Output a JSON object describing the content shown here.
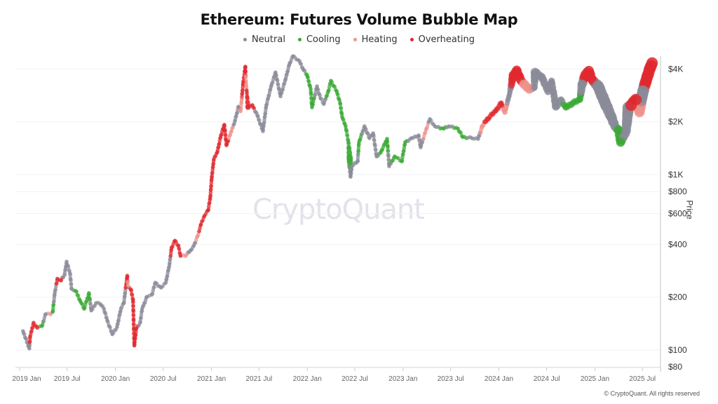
{
  "chart_data": {
    "type": "scatter",
    "title": "Ethereum: Futures Volume Bubble Map",
    "ylabel": "Price",
    "yscale": "log",
    "ylim": [
      80,
      4800
    ],
    "xlim": [
      "2018-12-20",
      "2025-08-25"
    ],
    "grid": "horizontal",
    "legend_position": "top",
    "watermark": "CryptoQuant",
    "copyright": "© CryptoQuant. All rights reserved",
    "y_ticks": [
      {
        "value": 4000,
        "label": "$4K"
      },
      {
        "value": 2000,
        "label": "$2K"
      },
      {
        "value": 1000,
        "label": "$1K"
      },
      {
        "value": 800,
        "label": "$800"
      },
      {
        "value": 600,
        "label": "$600"
      },
      {
        "value": 400,
        "label": "$400"
      },
      {
        "value": 200,
        "label": "$200"
      },
      {
        "value": 100,
        "label": "$100"
      },
      {
        "value": 80,
        "label": "$80"
      }
    ],
    "x_ticks": [
      {
        "value": "2019-01-01",
        "label": "2019 Jan"
      },
      {
        "value": "2019-07-01",
        "label": "2019 Jul"
      },
      {
        "value": "2020-01-01",
        "label": "2020 Jan"
      },
      {
        "value": "2020-07-01",
        "label": "2020 Jul"
      },
      {
        "value": "2021-01-01",
        "label": "2021 Jan"
      },
      {
        "value": "2021-07-01",
        "label": "2021 Jul"
      },
      {
        "value": "2022-01-01",
        "label": "2022 Jan"
      },
      {
        "value": "2022-07-01",
        "label": "2022 Jul"
      },
      {
        "value": "2023-01-01",
        "label": "2023 Jan"
      },
      {
        "value": "2023-07-01",
        "label": "2023 Jul"
      },
      {
        "value": "2024-01-01",
        "label": "2024 Jan"
      },
      {
        "value": "2024-07-01",
        "label": "2024 Jul"
      },
      {
        "value": "2025-01-01",
        "label": "2025 Jan"
      },
      {
        "value": "2025-07-01",
        "label": "2025 Jul"
      }
    ],
    "categories": [
      {
        "key": "n",
        "name": "Neutral",
        "color": "#8a8b99"
      },
      {
        "key": "c",
        "name": "Cooling",
        "color": "#3aa935"
      },
      {
        "key": "h",
        "name": "Heating",
        "color": "#f0928c"
      },
      {
        "key": "o",
        "name": "Overheating",
        "color": "#e0282e"
      }
    ],
    "point_fields": [
      "date",
      "price",
      "state",
      "relative_volume"
    ],
    "points": [
      [
        "2019-01-14",
        128,
        "n",
        1
      ],
      [
        "2019-02-07",
        102,
        "n",
        1
      ],
      [
        "2019-02-10",
        119,
        "o",
        1
      ],
      [
        "2019-02-23",
        143,
        "o",
        1
      ],
      [
        "2019-03-09",
        134,
        "o",
        1
      ],
      [
        "2019-03-27",
        137,
        "c",
        1
      ],
      [
        "2019-04-10",
        160,
        "n",
        1
      ],
      [
        "2019-04-29",
        160,
        "h",
        1
      ],
      [
        "2019-05-07",
        165,
        "c",
        1
      ],
      [
        "2019-05-15",
        212,
        "n",
        1
      ],
      [
        "2019-05-25",
        255,
        "o",
        1
      ],
      [
        "2019-06-08",
        249,
        "o",
        1
      ],
      [
        "2019-06-21",
        268,
        "n",
        1
      ],
      [
        "2019-06-29",
        319,
        "n",
        1
      ],
      [
        "2019-07-12",
        273,
        "n",
        1
      ],
      [
        "2019-07-18",
        223,
        "n",
        1
      ],
      [
        "2019-08-03",
        217,
        "c",
        1
      ],
      [
        "2019-08-21",
        189,
        "c",
        1
      ],
      [
        "2019-09-04",
        172,
        "c",
        1
      ],
      [
        "2019-09-22",
        211,
        "c",
        1
      ],
      [
        "2019-10-01",
        168,
        "n",
        1
      ],
      [
        "2019-10-19",
        185,
        "n",
        1
      ],
      [
        "2019-11-04",
        183,
        "n",
        1
      ],
      [
        "2019-11-18",
        172,
        "n",
        1
      ],
      [
        "2019-12-01",
        147,
        "n",
        1
      ],
      [
        "2019-12-20",
        123,
        "n",
        1
      ],
      [
        "2020-01-07",
        135,
        "n",
        1
      ],
      [
        "2020-01-22",
        172,
        "n",
        1
      ],
      [
        "2020-02-02",
        185,
        "n",
        1
      ],
      [
        "2020-02-15",
        265,
        "o",
        1
      ],
      [
        "2020-02-18",
        233,
        "h",
        1
      ],
      [
        "2020-02-29",
        221,
        "o",
        1
      ],
      [
        "2020-03-08",
        194,
        "o",
        1
      ],
      [
        "2020-03-13",
        106,
        "o",
        1
      ],
      [
        "2020-03-21",
        133,
        "o",
        1
      ],
      [
        "2020-04-04",
        143,
        "n",
        1
      ],
      [
        "2020-04-12",
        172,
        "n",
        1
      ],
      [
        "2020-04-30",
        201,
        "n",
        1
      ],
      [
        "2020-05-19",
        207,
        "n",
        1
      ],
      [
        "2020-06-01",
        242,
        "n",
        1
      ],
      [
        "2020-06-23",
        227,
        "n",
        1
      ],
      [
        "2020-07-11",
        242,
        "n",
        1
      ],
      [
        "2020-07-25",
        308,
        "n",
        1
      ],
      [
        "2020-08-02",
        384,
        "o",
        1
      ],
      [
        "2020-08-15",
        420,
        "o",
        1
      ],
      [
        "2020-08-28",
        394,
        "o",
        1
      ],
      [
        "2020-09-05",
        344,
        "o",
        1
      ],
      [
        "2020-09-24",
        344,
        "h",
        1
      ],
      [
        "2020-10-13",
        370,
        "n",
        1
      ],
      [
        "2020-10-26",
        394,
        "n",
        1
      ],
      [
        "2020-11-09",
        445,
        "h",
        1
      ],
      [
        "2020-11-22",
        520,
        "o",
        1
      ],
      [
        "2020-12-05",
        581,
        "o",
        1
      ],
      [
        "2020-12-19",
        625,
        "o",
        1
      ],
      [
        "2020-12-27",
        731,
        "o",
        1
      ],
      [
        "2021-01-02",
        964,
        "o",
        1
      ],
      [
        "2021-01-10",
        1225,
        "o",
        1
      ],
      [
        "2021-01-23",
        1340,
        "o",
        1
      ],
      [
        "2021-02-06",
        1675,
        "o",
        1
      ],
      [
        "2021-02-19",
        1924,
        "o",
        1
      ],
      [
        "2021-02-27",
        1472,
        "o",
        1
      ],
      [
        "2021-03-18",
        1770,
        "h",
        1
      ],
      [
        "2021-03-31",
        2016,
        "n",
        1
      ],
      [
        "2021-04-14",
        2440,
        "n",
        1
      ],
      [
        "2021-04-22",
        2300,
        "h",
        1
      ],
      [
        "2021-05-02",
        3370,
        "o",
        1
      ],
      [
        "2021-05-10",
        4130,
        "o",
        1
      ],
      [
        "2021-05-13",
        3280,
        "h",
        1
      ],
      [
        "2021-05-16",
        2910,
        "o",
        1
      ],
      [
        "2021-05-20",
        2420,
        "o",
        1.5
      ],
      [
        "2021-06-06",
        2490,
        "o",
        1
      ],
      [
        "2021-06-25",
        2170,
        "n",
        1
      ],
      [
        "2021-07-16",
        1770,
        "n",
        1
      ],
      [
        "2021-07-29",
        2490,
        "n",
        1
      ],
      [
        "2021-08-17",
        3220,
        "n",
        1
      ],
      [
        "2021-09-02",
        3830,
        "n",
        1
      ],
      [
        "2021-09-21",
        2800,
        "n",
        1
      ],
      [
        "2021-10-10",
        3490,
        "n",
        1
      ],
      [
        "2021-10-26",
        4330,
        "n",
        1
      ],
      [
        "2021-11-08",
        4740,
        "n",
        1
      ],
      [
        "2021-12-02",
        4450,
        "n",
        1
      ],
      [
        "2021-12-18",
        3950,
        "n",
        1
      ],
      [
        "2021-12-31",
        3700,
        "c",
        1
      ],
      [
        "2022-01-14",
        3070,
        "c",
        1
      ],
      [
        "2022-01-19",
        2420,
        "c",
        1
      ],
      [
        "2022-02-07",
        3190,
        "n",
        1
      ],
      [
        "2022-02-20",
        2730,
        "n",
        1
      ],
      [
        "2022-03-05",
        2530,
        "n",
        1
      ],
      [
        "2022-03-22",
        2990,
        "c",
        1
      ],
      [
        "2022-04-01",
        3430,
        "c",
        1
      ],
      [
        "2022-04-23",
        2990,
        "c",
        1
      ],
      [
        "2022-05-06",
        2560,
        "c",
        1
      ],
      [
        "2022-05-14",
        2130,
        "c",
        1
      ],
      [
        "2022-05-27",
        1888,
        "c",
        1
      ],
      [
        "2022-06-07",
        1530,
        "c",
        1
      ],
      [
        "2022-06-12",
        1225,
        "c",
        2
      ],
      [
        "2022-06-15",
        973,
        "n",
        1
      ],
      [
        "2022-06-20",
        1117,
        "n",
        1
      ],
      [
        "2022-07-12",
        1190,
        "n",
        1
      ],
      [
        "2022-07-17",
        1530,
        "c",
        1
      ],
      [
        "2022-08-07",
        1888,
        "n",
        1
      ],
      [
        "2022-08-26",
        1615,
        "n",
        1
      ],
      [
        "2022-09-09",
        1722,
        "n",
        1
      ],
      [
        "2022-09-22",
        1270,
        "n",
        1
      ],
      [
        "2022-10-08",
        1340,
        "c",
        1
      ],
      [
        "2022-11-01",
        1600,
        "c",
        1
      ],
      [
        "2022-11-09",
        1117,
        "n",
        1
      ],
      [
        "2022-11-30",
        1270,
        "c",
        1
      ],
      [
        "2022-12-27",
        1190,
        "c",
        1
      ],
      [
        "2023-01-09",
        1530,
        "c",
        1
      ],
      [
        "2023-02-02",
        1615,
        "n",
        1
      ],
      [
        "2023-03-01",
        1675,
        "n",
        1
      ],
      [
        "2023-03-09",
        1432,
        "n",
        1
      ],
      [
        "2023-03-31",
        1830,
        "h",
        1
      ],
      [
        "2023-04-13",
        2075,
        "n",
        1
      ],
      [
        "2023-05-02",
        1888,
        "n",
        1
      ],
      [
        "2023-06-05",
        1830,
        "c",
        1
      ],
      [
        "2023-06-24",
        1888,
        "n",
        1
      ],
      [
        "2023-07-29",
        1830,
        "c",
        1
      ],
      [
        "2023-08-16",
        1640,
        "c",
        1
      ],
      [
        "2023-09-20",
        1615,
        "n",
        1
      ],
      [
        "2023-10-14",
        1600,
        "n",
        1
      ],
      [
        "2023-10-30",
        1888,
        "h",
        1.3
      ],
      [
        "2023-11-18",
        2075,
        "o",
        1.5
      ],
      [
        "2023-12-20",
        2310,
        "o",
        1.5
      ],
      [
        "2024-01-10",
        2560,
        "o",
        1.5
      ],
      [
        "2024-01-24",
        2270,
        "h",
        1.5
      ],
      [
        "2024-02-11",
        2910,
        "n",
        1.5
      ],
      [
        "2024-02-25",
        3700,
        "o",
        3
      ],
      [
        "2024-03-09",
        3950,
        "o",
        3
      ],
      [
        "2024-03-23",
        3490,
        "o",
        3
      ],
      [
        "2024-04-05",
        3280,
        "h",
        3
      ],
      [
        "2024-04-26",
        3070,
        "h",
        3
      ],
      [
        "2024-05-15",
        3130,
        "n",
        2
      ],
      [
        "2024-05-18",
        3830,
        "n",
        3
      ],
      [
        "2024-06-13",
        3600,
        "n",
        2.5
      ],
      [
        "2024-07-07",
        2990,
        "n",
        2.5
      ],
      [
        "2024-07-20",
        3430,
        "n",
        2
      ],
      [
        "2024-08-05",
        2440,
        "n",
        2.5
      ],
      [
        "2024-08-25",
        2680,
        "n",
        2
      ],
      [
        "2024-09-12",
        2420,
        "c",
        2
      ],
      [
        "2024-10-09",
        2560,
        "c",
        2
      ],
      [
        "2024-11-05",
        2680,
        "c",
        2
      ],
      [
        "2024-11-13",
        3280,
        "n",
        3
      ],
      [
        "2024-11-26",
        3700,
        "o",
        3.5
      ],
      [
        "2024-12-09",
        3900,
        "o",
        3.5
      ],
      [
        "2024-12-23",
        3430,
        "o",
        3
      ],
      [
        "2025-01-13",
        3200,
        "n",
        4
      ],
      [
        "2025-02-09",
        2560,
        "n",
        4
      ],
      [
        "2025-03-05",
        2130,
        "n",
        3.5
      ],
      [
        "2025-03-18",
        1888,
        "n",
        3
      ],
      [
        "2025-04-01",
        1800,
        "c",
        3
      ],
      [
        "2025-04-09",
        1530,
        "c",
        3
      ],
      [
        "2025-04-30",
        1770,
        "n",
        3
      ],
      [
        "2025-05-08",
        2420,
        "n",
        4
      ],
      [
        "2025-05-19",
        2490,
        "o",
        4
      ],
      [
        "2025-06-06",
        2680,
        "o",
        4
      ],
      [
        "2025-06-20",
        2270,
        "h",
        3.5
      ],
      [
        "2025-07-03",
        2990,
        "n",
        4
      ],
      [
        "2025-07-19",
        3600,
        "o",
        4
      ],
      [
        "2025-08-01",
        4130,
        "o",
        4
      ],
      [
        "2025-08-07",
        4330,
        "o",
        4
      ]
    ]
  }
}
